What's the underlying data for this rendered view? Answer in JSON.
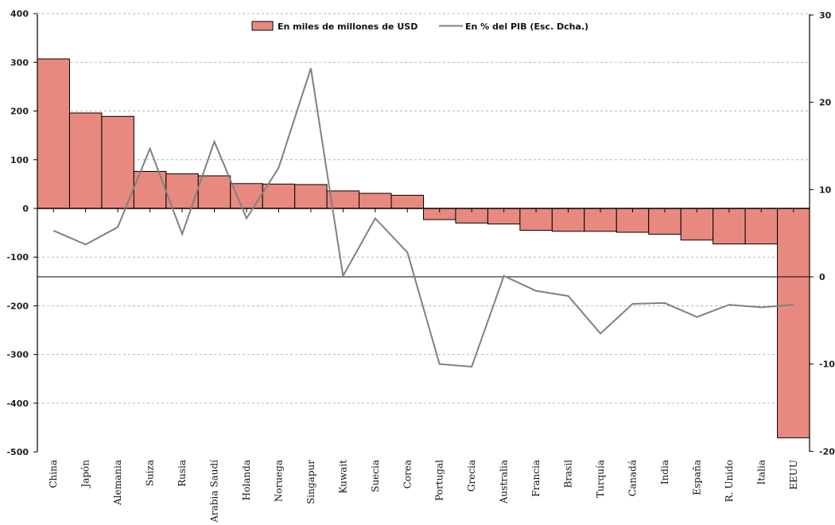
{
  "chart_data": {
    "type": "bar",
    "categories": [
      "China",
      "Japón",
      "Alemania",
      "Suiza",
      "Rusia",
      "Arabia Saudí",
      "Holanda",
      "Noruega",
      "Singapur",
      "Kuwait",
      "Suecia",
      "Corea",
      "Portugal",
      "Grecia",
      "Australia",
      "Francia",
      "Brasil",
      "Turquía",
      "Canadá",
      "India",
      "España",
      "R. Unido",
      "Italia",
      "EEUU"
    ],
    "series": [
      {
        "name": "En miles de millones de USD",
        "type": "bar",
        "axis": "left",
        "color": "#e8897f",
        "values": [
          307,
          196,
          189,
          76,
          71,
          67,
          51,
          50,
          49,
          36,
          31,
          27,
          -23,
          -30,
          -32,
          -45,
          -47,
          -47,
          -49,
          -53,
          -65,
          -73,
          -73,
          -471
        ]
      },
      {
        "name": "En % del PIB (Esc. Dcha.)",
        "type": "line",
        "axis": "right",
        "color": "#808080",
        "values": [
          5.3,
          3.7,
          5.7,
          14.7,
          4.9,
          15.5,
          6.7,
          12.5,
          23.9,
          0.1,
          6.7,
          2.8,
          -10.0,
          -10.3,
          0.1,
          -1.6,
          -2.2,
          -6.5,
          -3.1,
          -3.0,
          -4.6,
          -3.2,
          -3.5,
          -3.2
        ]
      }
    ],
    "y_left": {
      "ylim": [
        -500,
        400
      ],
      "ticks": [
        400,
        300,
        200,
        100,
        0,
        -100,
        -200,
        -300,
        -400,
        -500
      ]
    },
    "y_right": {
      "ylim": [
        -20,
        30
      ],
      "ticks": [
        30,
        20,
        10,
        0,
        -10,
        -20
      ]
    },
    "grid": true,
    "legend_position": "top-center"
  }
}
